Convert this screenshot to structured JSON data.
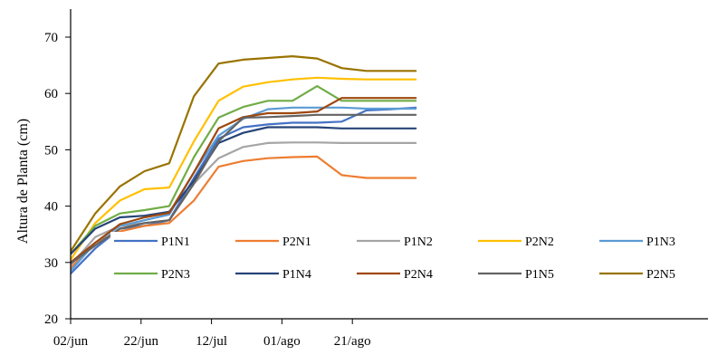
{
  "chart_data": {
    "type": "line",
    "title": "",
    "xlabel": "",
    "ylabel": "Altura de Planta (cm)",
    "ylim": [
      20,
      75
    ],
    "y_ticks": [
      20,
      30,
      40,
      50,
      60,
      70
    ],
    "x_tick_labels": [
      "02/jun",
      "22/jun",
      "12/jul",
      "01/ago",
      "21/ago"
    ],
    "x_days": [
      0,
      7,
      14,
      21,
      28,
      35,
      42,
      49,
      56,
      63,
      70,
      77,
      84,
      91,
      98
    ],
    "grid": false,
    "legend": "inside-bottom, 5 columns",
    "series": [
      {
        "name": "P1N1",
        "color": "#4472C4",
        "values": [
          28.0,
          32.5,
          36.0,
          36.5,
          37.5,
          45.0,
          52.0,
          54.0,
          54.5,
          54.8,
          54.8,
          55.0,
          57.0,
          57.2,
          57.5
        ]
      },
      {
        "name": "P2N1",
        "color": "#ED7D31",
        "values": [
          29.0,
          33.5,
          35.5,
          36.5,
          37.0,
          41.0,
          47.0,
          48.0,
          48.5,
          48.7,
          48.8,
          45.5,
          45.0,
          45.0,
          45.0
        ]
      },
      {
        "name": "P1N2",
        "color": "#A5A5A5",
        "values": [
          29.5,
          34.5,
          36.5,
          37.0,
          37.5,
          44.0,
          48.5,
          50.5,
          51.2,
          51.3,
          51.3,
          51.2,
          51.2,
          51.2,
          51.2
        ]
      },
      {
        "name": "P2N2",
        "color": "#FFC000",
        "values": [
          30.5,
          37.0,
          41.0,
          43.0,
          43.3,
          51.5,
          58.7,
          61.2,
          62.0,
          62.5,
          62.8,
          62.6,
          62.5,
          62.5,
          62.5
        ]
      },
      {
        "name": "P1N3",
        "color": "#5B9BD5",
        "values": [
          28.5,
          33.5,
          36.5,
          37.5,
          38.5,
          46.0,
          52.5,
          55.5,
          57.2,
          57.5,
          57.5,
          57.5,
          57.3,
          57.3,
          57.3
        ]
      },
      {
        "name": "P2N3",
        "color": "#70AD47",
        "values": [
          31.5,
          36.5,
          38.7,
          39.3,
          40.0,
          48.7,
          55.7,
          57.6,
          58.7,
          58.7,
          61.3,
          58.7,
          58.7,
          58.7,
          58.7
        ]
      },
      {
        "name": "P1N4",
        "color": "#264478",
        "values": [
          31.5,
          36.0,
          38.0,
          38.3,
          39.0,
          44.5,
          51.2,
          53.0,
          54.0,
          54.0,
          54.0,
          53.8,
          53.8,
          53.8,
          53.8
        ]
      },
      {
        "name": "P2N4",
        "color": "#9E480E",
        "values": [
          30.0,
          33.5,
          36.8,
          38.0,
          38.8,
          46.0,
          53.8,
          55.8,
          56.5,
          56.5,
          56.8,
          59.2,
          59.2,
          59.2,
          59.2
        ]
      },
      {
        "name": "P1N5",
        "color": "#636363",
        "values": [
          29.8,
          33.0,
          36.0,
          37.0,
          37.5,
          44.0,
          51.5,
          55.7,
          55.8,
          56.0,
          56.2,
          56.2,
          56.2,
          56.2,
          56.2
        ]
      },
      {
        "name": "P2N5",
        "color": "#997300",
        "values": [
          32.0,
          38.7,
          43.5,
          46.2,
          47.6,
          59.5,
          65.3,
          66.0,
          66.3,
          66.6,
          66.2,
          64.5,
          64.0,
          64.0,
          64.0
        ]
      }
    ]
  }
}
